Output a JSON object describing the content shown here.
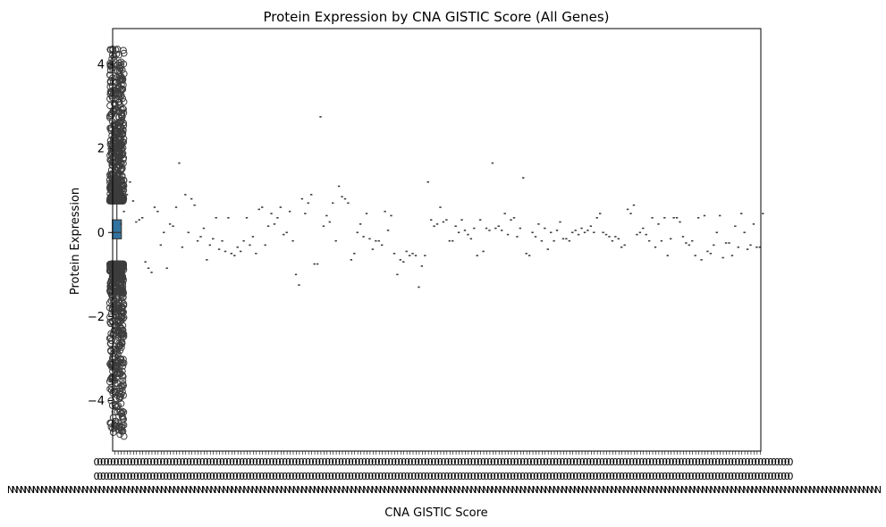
{
  "chart_data": {
    "type": "box",
    "title": "Protein Expression by CNA GISTIC Score (All Genes)",
    "xlabel": "CNA GISTIC Score",
    "ylabel": "Protein Expression",
    "ylim": [
      -5.2,
      4.85
    ],
    "yticks": [
      -4,
      -2,
      0,
      2,
      4
    ],
    "grid": false,
    "legend": "none",
    "notes": "",
    "colors": {
      "box": "#3274a1",
      "outline": "#3d3d3d",
      "axes": "#000000"
    },
    "main_box": {
      "whisker_low": -0.7,
      "q1": -0.15,
      "median": 0.0,
      "q3": 0.3,
      "whisker_high": 0.72,
      "outliers_low_range": [
        -4.85,
        -0.75
      ],
      "outliers_high_range": [
        0.75,
        4.4
      ]
    },
    "groups_medians": [
      0.2,
      0.5,
      0.9,
      1.2,
      0.75,
      0.25,
      0.3,
      0.35,
      -0.7,
      -0.85,
      -0.95,
      0.6,
      0.5,
      -0.3,
      0.0,
      -0.85,
      0.2,
      0.15,
      0.6,
      1.65,
      -0.35,
      0.9,
      0.0,
      0.8,
      0.65,
      -0.2,
      -0.1,
      0.1,
      -0.65,
      -0.3,
      -0.15,
      0.35,
      -0.4,
      -0.2,
      -0.45,
      0.35,
      -0.5,
      -0.55,
      -0.35,
      -0.45,
      -0.2,
      0.35,
      -0.3,
      -0.1,
      -0.5,
      0.55,
      0.6,
      -0.3,
      0.15,
      0.45,
      0.2,
      0.35,
      0.6,
      -0.05,
      0.0,
      0.5,
      -0.2,
      -1.0,
      -1.25,
      0.8,
      0.45,
      0.7,
      0.9,
      -0.75,
      -0.75,
      2.75,
      0.15,
      0.4,
      0.25,
      0.7,
      -0.2,
      1.1,
      0.85,
      0.8,
      0.7,
      -0.65,
      -0.5,
      0.0,
      0.2,
      -0.1,
      0.45,
      -0.15,
      -0.4,
      -0.2,
      -0.2,
      -0.3,
      0.5,
      0.05,
      0.4,
      -0.5,
      -1.0,
      -0.65,
      -0.7,
      -0.45,
      -0.55,
      -0.5,
      -0.55,
      -1.3,
      -0.8,
      -0.55,
      1.2,
      0.3,
      0.15,
      0.2,
      0.6,
      0.25,
      0.3,
      -0.2,
      -0.2,
      0.15,
      0.0,
      0.3,
      0.05,
      -0.05,
      -0.15,
      0.1,
      -0.55,
      0.3,
      -0.45,
      0.1,
      0.05,
      1.65,
      0.1,
      0.15,
      0.05,
      0.45,
      -0.05,
      0.3,
      0.35,
      -0.1,
      0.1,
      1.3,
      -0.5,
      -0.55,
      0.0,
      -0.1,
      0.2,
      -0.2,
      0.1,
      -0.4,
      0.0,
      -0.2,
      0.05,
      0.25,
      -0.15,
      -0.15,
      -0.2,
      0.0,
      0.05,
      -0.05,
      0.1,
      0.0,
      0.05,
      0.15,
      0.0,
      0.35,
      0.45,
      0.0,
      -0.05,
      -0.1,
      -0.2,
      -0.1,
      -0.15,
      -0.35,
      -0.3,
      0.55,
      0.45,
      0.65,
      -0.05,
      0.0,
      0.1,
      -0.05,
      -0.2,
      0.35,
      -0.35,
      0.2,
      -0.2,
      0.35,
      -0.55,
      -0.15,
      0.35,
      0.35,
      0.25,
      -0.1,
      -0.25,
      -0.3,
      -0.2,
      -0.55,
      0.35,
      -0.65,
      0.4,
      -0.45,
      -0.5,
      -0.3,
      0.0,
      0.4,
      -0.6,
      -0.25,
      -0.25,
      -0.55,
      0.15,
      -0.35,
      0.45,
      0.0,
      -0.4,
      -0.3,
      0.2,
      -0.35,
      -0.35,
      0.45
    ]
  }
}
